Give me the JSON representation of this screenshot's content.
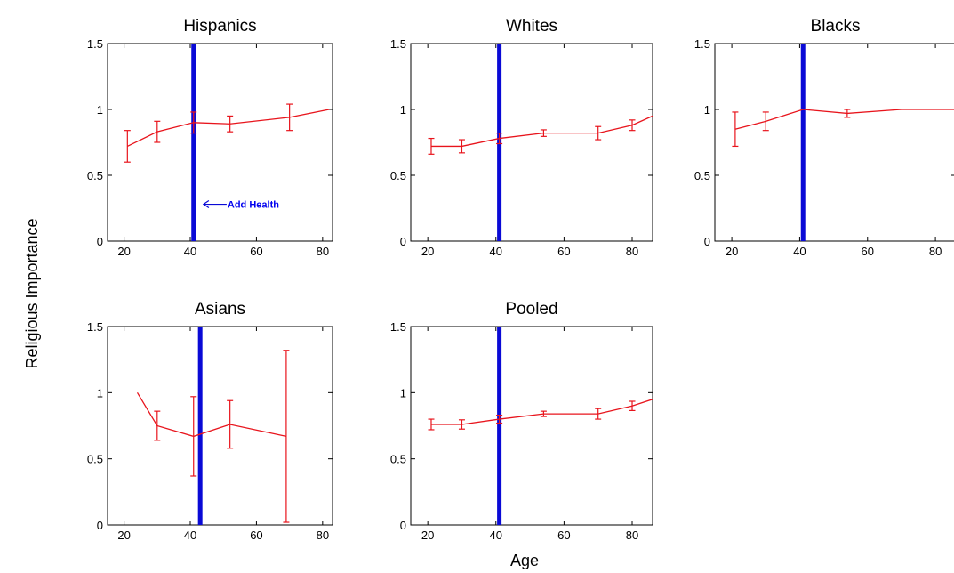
{
  "figure": {
    "ylabel": "Religious Importance",
    "xlabel": "Age",
    "colors": {
      "series": "#e8141c",
      "marker": "#0a0ad6",
      "axis": "#000000"
    }
  },
  "chart_data": [
    {
      "type": "line",
      "title": "Hispanics",
      "xlim": [
        15,
        83
      ],
      "ylim": [
        0,
        1.5
      ],
      "xticks": [
        20,
        40,
        60,
        80
      ],
      "yticks": [
        0,
        0.5,
        1,
        1.5
      ],
      "ytick_labels": [
        "0",
        "0.5",
        "1",
        "1.5"
      ],
      "vline_x": 41,
      "annotation": {
        "text": "Add Health",
        "x": 44,
        "y": 0.28
      },
      "series": [
        {
          "x": [
            21,
            30,
            41,
            52,
            70,
            82
          ],
          "y": [
            0.72,
            0.83,
            0.9,
            0.89,
            0.94,
            1.0
          ],
          "err": [
            0.12,
            0.08,
            0.08,
            0.06,
            0.1,
            0
          ]
        }
      ]
    },
    {
      "type": "line",
      "title": "Whites",
      "xlim": [
        15,
        86
      ],
      "ylim": [
        0,
        1.5
      ],
      "xticks": [
        20,
        40,
        60,
        80
      ],
      "yticks": [
        0,
        0.5,
        1,
        1.5
      ],
      "ytick_labels": [
        "0",
        "0.5",
        "1",
        "1.5"
      ],
      "vline_x": 41,
      "series": [
        {
          "x": [
            21,
            30,
            41,
            54,
            70,
            80,
            86
          ],
          "y": [
            0.72,
            0.72,
            0.78,
            0.82,
            0.82,
            0.88,
            0.95
          ],
          "err": [
            0.06,
            0.05,
            0.04,
            0.025,
            0.05,
            0.04,
            0
          ]
        }
      ]
    },
    {
      "type": "line",
      "title": "Blacks",
      "xlim": [
        15,
        86
      ],
      "ylim": [
        0,
        1.5
      ],
      "xticks": [
        20,
        40,
        60,
        80
      ],
      "yticks": [
        0,
        0.5,
        1,
        1.5
      ],
      "ytick_labels": [
        "0",
        "0.5",
        "1",
        "1.5"
      ],
      "vline_x": 41,
      "series": [
        {
          "x": [
            21,
            30,
            41,
            54,
            70,
            86
          ],
          "y": [
            0.85,
            0.91,
            1.0,
            0.97,
            1.0,
            1.0
          ],
          "err": [
            0.13,
            0.07,
            0,
            0.03,
            0,
            0
          ]
        }
      ]
    },
    {
      "type": "line",
      "title": "Asians",
      "xlim": [
        15,
        83
      ],
      "ylim": [
        0,
        1.5
      ],
      "xticks": [
        20,
        40,
        60,
        80
      ],
      "yticks": [
        0,
        0.5,
        1,
        1.5
      ],
      "ytick_labels": [
        "0",
        "0.5",
        "1",
        "1.5"
      ],
      "vline_x": 43,
      "series": [
        {
          "x": [
            24,
            30,
            41,
            52,
            69
          ],
          "y": [
            1.0,
            0.75,
            0.67,
            0.76,
            0.67
          ],
          "err": [
            0,
            0.11,
            0.3,
            0.18,
            0.65
          ]
        }
      ]
    },
    {
      "type": "line",
      "title": "Pooled",
      "xlim": [
        15,
        86
      ],
      "ylim": [
        0,
        1.5
      ],
      "xticks": [
        20,
        40,
        60,
        80
      ],
      "yticks": [
        0,
        0.5,
        1,
        1.5
      ],
      "ytick_labels": [
        "0",
        "0.5",
        "1",
        "1.5"
      ],
      "vline_x": 41,
      "series": [
        {
          "x": [
            21,
            30,
            41,
            54,
            70,
            80,
            86
          ],
          "y": [
            0.76,
            0.76,
            0.8,
            0.84,
            0.84,
            0.9,
            0.95
          ],
          "err": [
            0.04,
            0.035,
            0.03,
            0.02,
            0.04,
            0.035,
            0
          ]
        }
      ]
    }
  ]
}
